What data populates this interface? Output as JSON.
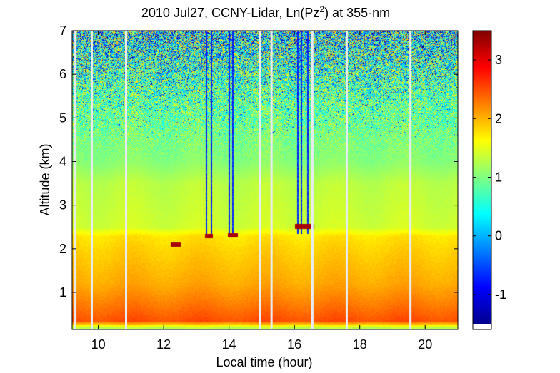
{
  "chart_data": {
    "type": "heatmap",
    "title_prefix": "2010 Jul27, CCNY-Lidar, Ln(Pz",
    "title_sup": "2",
    "title_suffix": ") at 355-nm",
    "xlabel": "Local time (hour)",
    "ylabel": "Altitude (km)",
    "xlim": [
      9.2,
      21.0
    ],
    "ylim": [
      0.15,
      7.0
    ],
    "xticks": [
      10,
      12,
      14,
      16,
      18,
      20
    ],
    "yticks": [
      1,
      2,
      3,
      4,
      5,
      6,
      7
    ],
    "colorbar": {
      "range": [
        -1.5,
        3.5
      ],
      "ticks": [
        -1,
        0,
        1,
        2,
        3
      ],
      "colormap": "jet"
    },
    "profile": [
      {
        "altitude": 0.2,
        "value": 1.3
      },
      {
        "altitude": 0.35,
        "value": 2.5
      },
      {
        "altitude": 0.7,
        "value": 2.3
      },
      {
        "altitude": 1.2,
        "value": 2.05
      },
      {
        "altitude": 1.6,
        "value": 1.95
      },
      {
        "altitude": 2.0,
        "value": 1.85
      },
      {
        "altitude": 2.3,
        "value": 1.75
      },
      {
        "altitude": 2.5,
        "value": 1.4
      },
      {
        "altitude": 3.5,
        "value": 1.3
      },
      {
        "altitude": 4.0,
        "value": 1.05
      },
      {
        "altitude": 5.5,
        "value": 0.85
      },
      {
        "altitude": 7.0,
        "value": 0.6
      }
    ],
    "data_gaps_hours": [
      9.3,
      9.8,
      10.85,
      14.95,
      15.3,
      16.55,
      17.6,
      19.55
    ],
    "cloud_events": [
      {
        "time_start": 12.2,
        "time_end": 12.5,
        "altitude": 2.1
      },
      {
        "time_start": 13.25,
        "time_end": 13.5,
        "altitude": 2.3
      },
      {
        "time_start": 13.95,
        "time_end": 14.25,
        "altitude": 2.32
      },
      {
        "time_start": 16.0,
        "time_end": 16.6,
        "altitude": 2.52
      }
    ],
    "attenuation_streaks_hours": [
      13.3,
      13.45,
      14.0,
      14.1,
      16.1,
      16.2,
      16.4
    ]
  }
}
